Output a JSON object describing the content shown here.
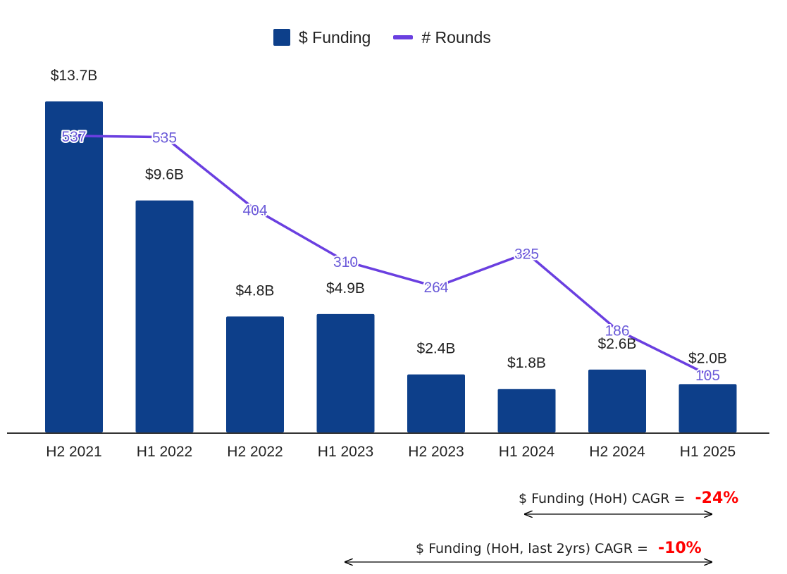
{
  "chart_data": {
    "type": "bar",
    "categories": [
      "H2 2021",
      "H1 2022",
      "H2 2022",
      "H1 2023",
      "H2 2023",
      "H1 2024",
      "H2 2024",
      "H1 2025"
    ],
    "series": [
      {
        "name": "$ Funding",
        "type": "bar",
        "values": [
          13.7,
          9.6,
          4.8,
          4.9,
          2.4,
          1.8,
          2.6,
          2.0
        ],
        "labels": [
          "$13.7B",
          "$9.6B",
          "$4.8B",
          "$4.9B",
          "$2.4B",
          "$1.8B",
          "$2.6B",
          "$2.0B"
        ],
        "color": "#0d3f8a"
      },
      {
        "name": "# Rounds",
        "type": "line",
        "values": [
          537,
          535,
          404,
          310,
          264,
          325,
          186,
          105
        ],
        "labels": [
          "537",
          "535",
          "404",
          "310",
          "264",
          "325",
          "186",
          "105"
        ],
        "color": "#6a3fe0"
      }
    ],
    "legend": [
      "$ Funding",
      "# Rounds"
    ],
    "legend_position": "top-center",
    "ylim_funding": [
      0,
      13.7
    ],
    "grid": false
  },
  "annotations": {
    "cagr_1": {
      "label": "$ Funding (HoH) CAGR = ",
      "value": "-24%"
    },
    "cagr_2": {
      "label": "$ Funding (HoH, last 2yrs) CAGR = ",
      "value": "-10%"
    }
  }
}
